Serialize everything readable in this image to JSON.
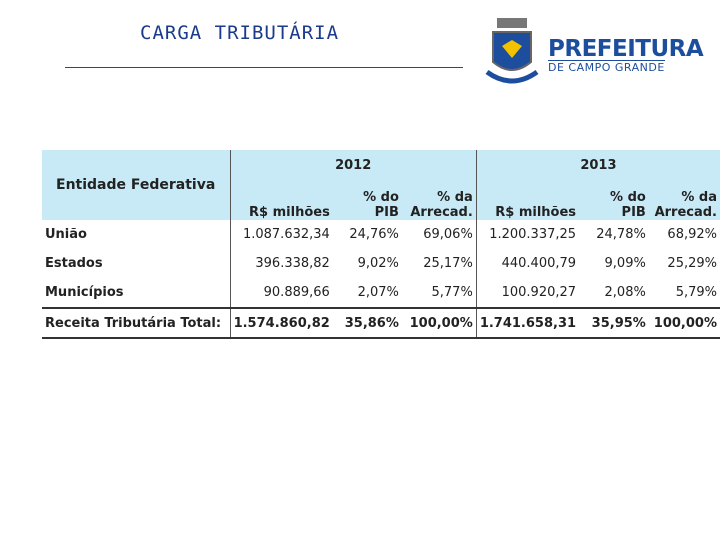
{
  "header": {
    "title": "CARGA TRIBUTÁRIA",
    "logo_name": "PREFEITURA",
    "logo_sub": "DE CAMPO GRANDE"
  },
  "table": {
    "entity_header": "Entidade Federativa",
    "years": [
      "2012",
      "2013"
    ],
    "subheaders": [
      "R$ milhões",
      "% do PIB",
      "% da Arrecad.",
      "R$ milhões",
      "% do PIB",
      "% da Arrecad."
    ],
    "rows": [
      [
        "União",
        "1.087.632,34",
        "24,76%",
        "69,06%",
        "1.200.337,25",
        "24,78%",
        "68,92%"
      ],
      [
        "Estados",
        "396.338,82",
        "9,02%",
        "25,17%",
        "440.400,79",
        "9,09%",
        "25,29%"
      ],
      [
        "Municípios",
        "90.889,66",
        "2,07%",
        "5,77%",
        "100.920,27",
        "2,08%",
        "5,79%"
      ]
    ],
    "total": [
      "Receita Tributária Total:",
      "1.574.860,82",
      "35,86%",
      "100,00%",
      "1.741.658,31",
      "35,95%",
      "100,00%"
    ]
  }
}
